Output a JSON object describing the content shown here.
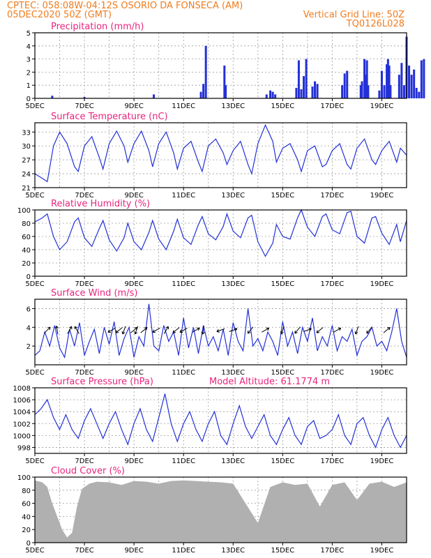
{
  "header": {
    "line1_left": "CPTEC:   058:08W-04:12S   OSORIO DA FONSECA (AM)",
    "line2_left": "05DEC2020 50Z (GMT)",
    "line2_right": "Vertical Grid Line: 50Z",
    "line3_right": "TQ0126L028"
  },
  "colors": {
    "header": "#ef7c1e",
    "title": "#e8247e",
    "line": "#2330d6",
    "bar": "#2330d6",
    "cloud": "#b0b0b0"
  },
  "chart_data": [
    {
      "type": "bar",
      "title": "Precipitation (mm/h)",
      "ylim": [
        0,
        5
      ],
      "yticks": [
        "0",
        "1",
        "2",
        "3",
        "4",
        "5"
      ],
      "x_labels": [
        "5DEC",
        "7DEC",
        "9DEC",
        "11DEC",
        "13DEC",
        "15DEC",
        "17DEC",
        "19DEC"
      ],
      "x_range_days": [
        0,
        15
      ],
      "x": [
        0.7,
        2.0,
        4.8,
        6.7,
        6.8,
        6.9,
        7.65,
        7.7,
        9.35,
        9.5,
        9.6,
        9.7,
        10.55,
        10.65,
        10.75,
        10.85,
        10.95,
        11.2,
        11.3,
        11.4,
        12.4,
        12.5,
        12.6,
        13.15,
        13.2,
        13.3,
        13.35,
        13.4,
        13.45,
        13.9,
        14.0,
        14.1,
        14.2,
        14.25,
        14.3,
        14.35,
        14.7,
        14.8,
        14.9,
        15.0,
        15.1,
        15.2,
        15.3,
        15.4,
        15.5,
        15.6,
        15.7
      ],
      "values": [
        0.2,
        0.1,
        0.3,
        0.5,
        1.1,
        4.0,
        2.5,
        1.0,
        0.3,
        0.6,
        0.5,
        0.3,
        0.8,
        2.9,
        0.7,
        1.7,
        3.0,
        0.9,
        1.3,
        1.1,
        1.0,
        1.9,
        2.1,
        1.0,
        1.3,
        3.0,
        1.8,
        2.9,
        1.0,
        0.6,
        2.1,
        1.0,
        2.6,
        3.0,
        2.5,
        1.0,
        1.8,
        2.7,
        1.0,
        4.7,
        2.5,
        1.8,
        2.2,
        0.8,
        0.5,
        2.9,
        3.0
      ]
    },
    {
      "type": "line",
      "title": "Surface Temperature (nC)",
      "ylim": [
        21,
        35
      ],
      "yticks": [
        "21",
        "24",
        "27",
        "30",
        "33"
      ],
      "x_labels": [
        "5DEC",
        "7DEC",
        "9DEC",
        "11DEC",
        "13DEC",
        "15DEC",
        "17DEC",
        "19DEC"
      ],
      "x_range_days": [
        0,
        15
      ],
      "x": [
        0,
        0.3,
        0.5,
        0.75,
        1.0,
        1.3,
        1.6,
        1.75,
        2.0,
        2.3,
        2.6,
        2.75,
        3.0,
        3.3,
        3.6,
        3.75,
        4.0,
        4.3,
        4.6,
        4.75,
        5.0,
        5.3,
        5.6,
        5.75,
        6.0,
        6.3,
        6.6,
        6.75,
        7.0,
        7.3,
        7.6,
        7.75,
        8.0,
        8.3,
        8.6,
        8.75,
        9.0,
        9.3,
        9.6,
        9.75,
        10.0,
        10.3,
        10.6,
        10.75,
        11.0,
        11.3,
        11.6,
        11.75,
        12.0,
        12.3,
        12.6,
        12.75,
        13.0,
        13.3,
        13.6,
        13.75,
        14.0,
        14.3,
        14.6,
        14.75,
        15.0
      ],
      "values": [
        24.0,
        23.0,
        22.3,
        30.0,
        33.0,
        30.5,
        25.5,
        24.5,
        30.0,
        32.0,
        27.5,
        25.0,
        30.5,
        33.2,
        30.0,
        26.5,
        30.5,
        33.2,
        29.0,
        25.5,
        30.5,
        33.0,
        28.5,
        25.0,
        29.5,
        31.0,
        26.5,
        24.5,
        30.0,
        31.5,
        28.5,
        26.0,
        29.0,
        31.0,
        26.0,
        24.0,
        30.5,
        34.5,
        31.0,
        26.5,
        29.5,
        30.5,
        27.0,
        24.5,
        29.0,
        30.0,
        25.5,
        26.0,
        29.0,
        30.5,
        26.0,
        25.0,
        29.5,
        31.5,
        27.0,
        26.0,
        29.0,
        31.0,
        26.5,
        29.5,
        28.0
      ]
    },
    {
      "type": "line",
      "title": "Relative Humidity (%)",
      "ylim": [
        0,
        100
      ],
      "yticks": [
        "0",
        "20",
        "40",
        "60",
        "80",
        "100"
      ],
      "x_labels": [
        "5DEC",
        "7DEC",
        "9DEC",
        "11DEC",
        "13DEC",
        "15DEC",
        "17DEC",
        "19DEC"
      ],
      "x_range_days": [
        0,
        15
      ],
      "x": [
        0,
        0.3,
        0.5,
        0.75,
        1.0,
        1.3,
        1.6,
        1.75,
        2.0,
        2.3,
        2.6,
        2.75,
        3.0,
        3.3,
        3.6,
        3.75,
        4.0,
        4.3,
        4.6,
        4.75,
        5.0,
        5.3,
        5.6,
        5.75,
        6.0,
        6.3,
        6.6,
        6.75,
        7.0,
        7.3,
        7.6,
        7.75,
        8.0,
        8.3,
        8.6,
        8.75,
        9.0,
        9.3,
        9.6,
        9.75,
        10.0,
        10.3,
        10.6,
        10.75,
        11.0,
        11.3,
        11.6,
        11.75,
        12.0,
        12.3,
        12.6,
        12.75,
        13.0,
        13.3,
        13.6,
        13.75,
        14.0,
        14.3,
        14.6,
        14.75,
        15.0
      ],
      "values": [
        82,
        88,
        94,
        60,
        40,
        52,
        82,
        88,
        58,
        45,
        72,
        84,
        55,
        38,
        58,
        80,
        52,
        40,
        66,
        84,
        56,
        40,
        68,
        86,
        58,
        48,
        78,
        90,
        64,
        55,
        75,
        94,
        68,
        58,
        88,
        92,
        52,
        30,
        50,
        78,
        60,
        56,
        88,
        100,
        74,
        60,
        90,
        94,
        70,
        64,
        96,
        98,
        60,
        50,
        88,
        90,
        65,
        48,
        78,
        52,
        84
      ]
    },
    {
      "type": "line",
      "title": "Surface Wind (m/s)",
      "ylim": [
        0,
        7
      ],
      "yticks": [
        "2",
        "4",
        "6"
      ],
      "x_labels": [
        "5DEC",
        "7DEC",
        "9DEC",
        "11DEC",
        "13DEC",
        "15DEC",
        "17DEC",
        "19DEC"
      ],
      "x_range_days": [
        0,
        15
      ],
      "x": [
        0,
        0.2,
        0.4,
        0.6,
        0.8,
        1.0,
        1.2,
        1.4,
        1.6,
        1.8,
        2.0,
        2.2,
        2.4,
        2.6,
        2.8,
        3.0,
        3.2,
        3.4,
        3.6,
        3.8,
        4.0,
        4.2,
        4.4,
        4.6,
        4.8,
        5.0,
        5.2,
        5.4,
        5.6,
        5.8,
        6.0,
        6.2,
        6.4,
        6.6,
        6.8,
        7.0,
        7.2,
        7.4,
        7.6,
        7.8,
        8.0,
        8.2,
        8.4,
        8.6,
        8.8,
        9.0,
        9.2,
        9.4,
        9.6,
        9.8,
        10.0,
        10.2,
        10.4,
        10.6,
        10.8,
        11.0,
        11.2,
        11.4,
        11.6,
        11.8,
        12.0,
        12.2,
        12.4,
        12.6,
        12.8,
        13.0,
        13.2,
        13.4,
        13.6,
        13.8,
        14.0,
        14.2,
        14.4,
        14.6,
        14.8,
        15.0
      ],
      "values": [
        1.0,
        1.5,
        3.5,
        2.0,
        4.2,
        1.8,
        0.8,
        3.8,
        2.0,
        4.5,
        1.0,
        2.5,
        3.8,
        1.2,
        4.0,
        2.2,
        4.6,
        1.0,
        2.8,
        4.0,
        0.8,
        3.0,
        2.0,
        6.5,
        2.0,
        1.5,
        4.2,
        2.5,
        3.5,
        1.0,
        5.0,
        1.8,
        4.0,
        1.2,
        4.2,
        2.0,
        3.0,
        1.5,
        3.8,
        1.0,
        4.5,
        2.5,
        1.5,
        6.0,
        2.0,
        2.8,
        1.5,
        3.5,
        2.5,
        1.0,
        4.6,
        2.0,
        3.5,
        1.2,
        4.0,
        2.5,
        5.0,
        1.5,
        3.0,
        2.0,
        4.2,
        1.5,
        3.0,
        2.5,
        3.8,
        1.0,
        2.5,
        3.0,
        4.0,
        2.0,
        2.5,
        1.5,
        3.5,
        6.0,
        2.5,
        0.8
      ]
    },
    {
      "type": "line",
      "title": "Surface Pressure (hPa)",
      "annotation": "Model Altitude: 61.1774 m",
      "ylim": [
        997,
        1008
      ],
      "yticks": [
        "998",
        "1000",
        "1002",
        "1004",
        "1006",
        "1008"
      ],
      "x_labels": [
        "5DEC",
        "7DEC",
        "9DEC",
        "11DEC",
        "13DEC",
        "15DEC",
        "17DEC",
        "19DEC"
      ],
      "x_range_days": [
        0,
        15
      ],
      "x": [
        0,
        0.25,
        0.5,
        0.75,
        1.0,
        1.25,
        1.5,
        1.75,
        2.0,
        2.25,
        2.5,
        2.75,
        3.0,
        3.25,
        3.5,
        3.75,
        4.0,
        4.25,
        4.5,
        4.75,
        5.0,
        5.25,
        5.5,
        5.75,
        6.0,
        6.25,
        6.5,
        6.75,
        7.0,
        7.25,
        7.5,
        7.75,
        8.0,
        8.25,
        8.5,
        8.75,
        9.0,
        9.25,
        9.5,
        9.75,
        10.0,
        10.25,
        10.5,
        10.75,
        11.0,
        11.25,
        11.5,
        11.75,
        12.0,
        12.25,
        12.5,
        12.75,
        13.0,
        13.25,
        13.5,
        13.75,
        14.0,
        14.25,
        14.5,
        14.75,
        15.0
      ],
      "values": [
        1003.5,
        1004.5,
        1006.0,
        1003.0,
        1001.0,
        1003.5,
        1001.0,
        999.5,
        1002.5,
        1004.5,
        1002.0,
        999.5,
        1002.0,
        1004.0,
        1001.0,
        998.5,
        1002.0,
        1004.5,
        1001.0,
        999.0,
        1003.0,
        1007.0,
        1002.0,
        999.0,
        1002.0,
        1004.0,
        1001.0,
        999.0,
        1002.0,
        1004.0,
        1000.0,
        998.5,
        1002.0,
        1005.0,
        1001.5,
        999.5,
        1001.5,
        1003.5,
        1000.0,
        998.5,
        1001.0,
        1003.0,
        1000.0,
        998.5,
        1001.5,
        1002.5,
        999.5,
        1000.0,
        1001.0,
        1003.5,
        1000.0,
        998.5,
        1002.0,
        1003.0,
        1000.0,
        998.0,
        1001.0,
        1003.0,
        1000.0,
        998.0,
        1000.0
      ]
    },
    {
      "type": "area",
      "title": "Cloud Cover (%)",
      "ylim": [
        0,
        100
      ],
      "yticks": [
        "0",
        "20",
        "40",
        "60",
        "80",
        "100"
      ],
      "x_labels": [
        "5DEC",
        "7DEC",
        "9DEC",
        "11DEC",
        "13DEC",
        "15DEC",
        "17DEC",
        "19DEC"
      ],
      "x_range_days": [
        0,
        15
      ],
      "x": [
        0,
        0.3,
        0.5,
        0.7,
        0.9,
        1.1,
        1.3,
        1.5,
        1.7,
        1.9,
        2.2,
        2.5,
        3.0,
        3.5,
        4.0,
        4.5,
        5.0,
        5.5,
        6.0,
        6.5,
        7.0,
        7.5,
        8.0,
        8.5,
        9.0,
        9.5,
        10.0,
        10.5,
        11.0,
        11.5,
        12.0,
        12.5,
        13.0,
        13.5,
        14.0,
        14.5,
        15.0
      ],
      "values": [
        95,
        92,
        85,
        60,
        40,
        20,
        8,
        15,
        55,
        82,
        90,
        93,
        92,
        88,
        94,
        93,
        90,
        94,
        95,
        94,
        93,
        92,
        90,
        60,
        30,
        85,
        92,
        88,
        90,
        55,
        88,
        92,
        65,
        90,
        93,
        85,
        92
      ]
    }
  ],
  "wind_arrows": [
    {
      "day": 0.5,
      "dir_deg": 45
    },
    {
      "day": 0.9,
      "dir_deg": 100
    },
    {
      "day": 1.4,
      "dir_deg": 60
    },
    {
      "day": 1.7,
      "dir_deg": 120
    },
    {
      "day": 3.1,
      "dir_deg": 210
    },
    {
      "day": 3.4,
      "dir_deg": 220
    },
    {
      "day": 3.6,
      "dir_deg": 250
    },
    {
      "day": 4.0,
      "dir_deg": 40
    },
    {
      "day": 4.1,
      "dir_deg": 250
    },
    {
      "day": 4.4,
      "dir_deg": 40
    },
    {
      "day": 4.9,
      "dir_deg": 210
    },
    {
      "day": 5.3,
      "dir_deg": 60
    },
    {
      "day": 5.7,
      "dir_deg": 220
    },
    {
      "day": 6.0,
      "dir_deg": 210
    },
    {
      "day": 6.5,
      "dir_deg": 30
    },
    {
      "day": 6.8,
      "dir_deg": 260
    },
    {
      "day": 7.5,
      "dir_deg": 200
    },
    {
      "day": 8.0,
      "dir_deg": 20
    },
    {
      "day": 8.7,
      "dir_deg": 230
    },
    {
      "day": 9.3,
      "dir_deg": 30
    },
    {
      "day": 10.0,
      "dir_deg": 250
    },
    {
      "day": 10.6,
      "dir_deg": 230
    },
    {
      "day": 11.0,
      "dir_deg": 20
    },
    {
      "day": 11.5,
      "dir_deg": 220
    },
    {
      "day": 12.2,
      "dir_deg": 30
    },
    {
      "day": 13.0,
      "dir_deg": 250
    },
    {
      "day": 13.5,
      "dir_deg": 230
    },
    {
      "day": 14.2,
      "dir_deg": 40
    }
  ]
}
